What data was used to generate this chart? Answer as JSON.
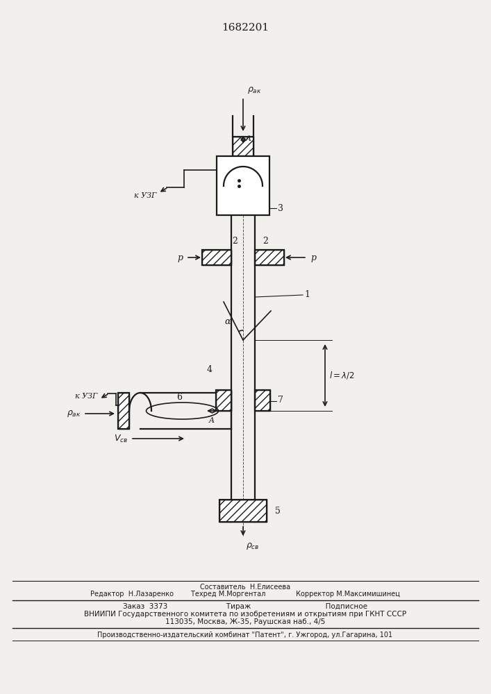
{
  "title": "1682201",
  "bg_color": "#f2f0ec",
  "line_color": "#1a1a1a",
  "footer_lines": [
    "Составитель  Н.Елисеева",
    "Редактор  Н.Лазаренко       Техред М.Моргентал             Корректор М.Максимишинец",
    "Заказ  3373                           Тираж                                    Подписное",
    "ВНИИПИ Государственного комитета по изобретениям и открытиям при ГКНТ СССР",
    "113035, Москва, Ж-35, Раушская наб., 4/5",
    "Производственно-издательский комбинат \"Патент\", г. Ужгород, ул.Гагарина, 101"
  ]
}
